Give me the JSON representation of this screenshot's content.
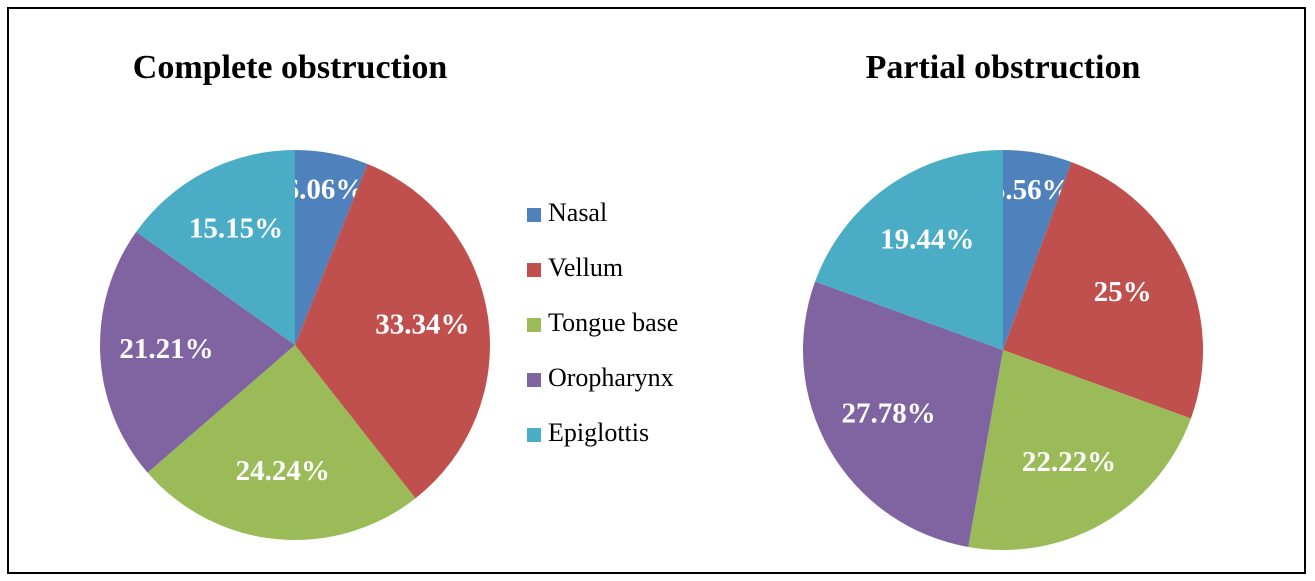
{
  "legend": {
    "categories": [
      "Nasal",
      "Vellum",
      "Tongue base",
      "Oropharynx",
      "Epiglottis"
    ],
    "colors": [
      "#4f81bd",
      "#c0504d",
      "#9bbb59",
      "#8064a2",
      "#4bacc6"
    ]
  },
  "chart_data": [
    {
      "type": "pie",
      "title": "Complete obstruction",
      "values": [
        6.06,
        33.34,
        24.24,
        21.21,
        15.15
      ],
      "value_labels": [
        "6.06%",
        "33.34%",
        "24.24%",
        "21.21%",
        "15.15%"
      ]
    },
    {
      "type": "pie",
      "title": "Partial obstruction",
      "values": [
        5.56,
        25,
        22.22,
        27.78,
        19.44
      ],
      "value_labels": [
        "5.56%",
        "25%",
        "22.22%",
        "27.78%",
        "19.44%"
      ]
    }
  ]
}
